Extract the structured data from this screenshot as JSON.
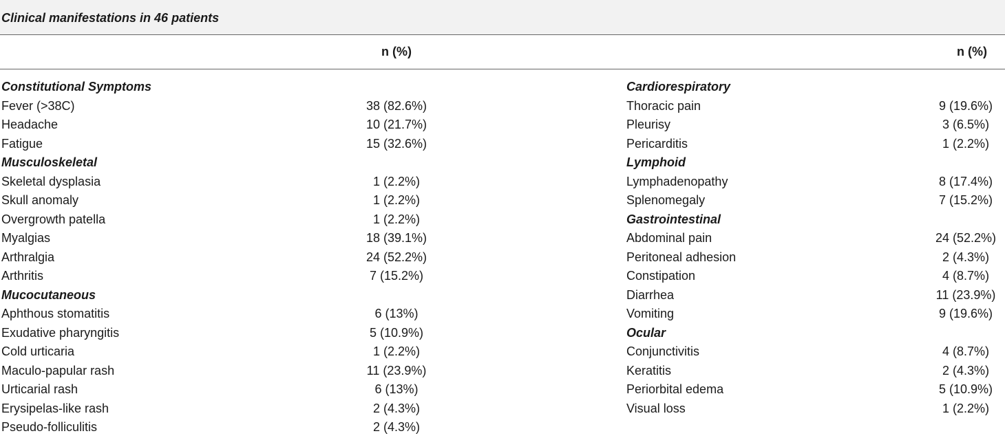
{
  "title": "Clinical manifestations in 46 patients",
  "headers": {
    "left_value": "n (%)",
    "right_value": "n (%)"
  },
  "left_rows": [
    {
      "label": "Constitutional Symptoms",
      "value": "",
      "category": true
    },
    {
      "label": "Fever (>38C)",
      "value": "38 (82.6%)",
      "category": false
    },
    {
      "label": "Headache",
      "value": "10 (21.7%)",
      "category": false
    },
    {
      "label": "Fatigue",
      "value": "15 (32.6%)",
      "category": false
    },
    {
      "label": "Musculoskeletal",
      "value": "",
      "category": true
    },
    {
      "label": "Skeletal dysplasia",
      "value": "1 (2.2%)",
      "category": false
    },
    {
      "label": "Skull anomaly",
      "value": "1 (2.2%)",
      "category": false
    },
    {
      "label": "Overgrowth patella",
      "value": "1 (2.2%)",
      "category": false
    },
    {
      "label": "Myalgias",
      "value": "18 (39.1%)",
      "category": false
    },
    {
      "label": "Arthralgia",
      "value": "24 (52.2%)",
      "category": false
    },
    {
      "label": "Arthritis",
      "value": "7 (15.2%)",
      "category": false
    },
    {
      "label": "Mucocutaneous",
      "value": "",
      "category": true
    },
    {
      "label": "Aphthous stomatitis",
      "value": "6 (13%)",
      "category": false
    },
    {
      "label": "Exudative pharyngitis",
      "value": "5 (10.9%)",
      "category": false
    },
    {
      "label": "Cold urticaria",
      "value": "1 (2.2%)",
      "category": false
    },
    {
      "label": "Maculo-papular rash",
      "value": "11 (23.9%)",
      "category": false
    },
    {
      "label": "Urticarial rash",
      "value": "6 (13%)",
      "category": false
    },
    {
      "label": "Erysipelas-like rash",
      "value": "2 (4.3%)",
      "category": false
    },
    {
      "label": "Pseudo-folliculitis",
      "value": "2 (4.3%)",
      "category": false
    }
  ],
  "right_rows": [
    {
      "label": "Cardiorespiratory",
      "value": "",
      "category": true
    },
    {
      "label": "Thoracic pain",
      "value": "9 (19.6%)",
      "category": false
    },
    {
      "label": "Pleurisy",
      "value": "3 (6.5%)",
      "category": false
    },
    {
      "label": "Pericarditis",
      "value": "1 (2.2%)",
      "category": false
    },
    {
      "label": "Lymphoid",
      "value": "",
      "category": true
    },
    {
      "label": "Lymphadenopathy",
      "value": "8 (17.4%)",
      "category": false
    },
    {
      "label": "Splenomegaly",
      "value": "7 (15.2%)",
      "category": false
    },
    {
      "label": "Gastrointestinal",
      "value": "",
      "category": true
    },
    {
      "label": "Abdominal pain",
      "value": "24 (52.2%)",
      "category": false
    },
    {
      "label": "Peritoneal adhesion",
      "value": "2 (4.3%)",
      "category": false
    },
    {
      "label": "Constipation",
      "value": "4 (8.7%)",
      "category": false
    },
    {
      "label": "Diarrhea",
      "value": "11 (23.9%)",
      "category": false
    },
    {
      "label": "Vomiting",
      "value": "9 (19.6%)",
      "category": false
    },
    {
      "label": "Ocular",
      "value": "",
      "category": true
    },
    {
      "label": "Conjunctivitis",
      "value": "4 (8.7%)",
      "category": false
    },
    {
      "label": "Keratitis",
      "value": "2 (4.3%)",
      "category": false
    },
    {
      "label": "Periorbital edema",
      "value": "5 (10.9%)",
      "category": false
    },
    {
      "label": "Visual loss",
      "value": "1 (2.2%)",
      "category": false
    }
  ]
}
